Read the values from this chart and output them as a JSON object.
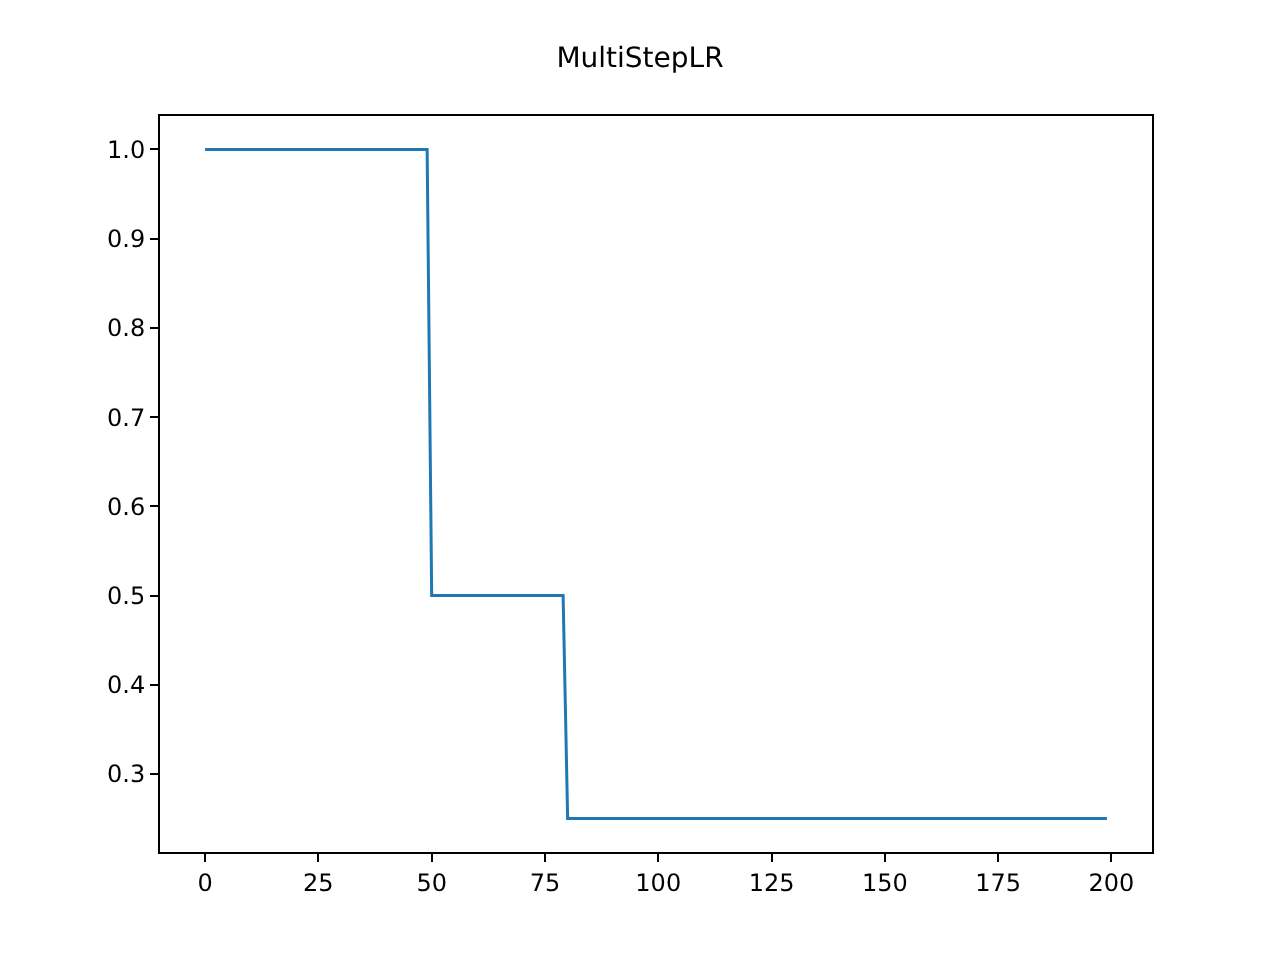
{
  "chart_data": {
    "type": "line",
    "title": "MultiStepLR",
    "series": [
      {
        "color": "#1f77b4",
        "x": [
          0,
          49,
          50,
          79,
          80,
          199
        ],
        "values": [
          1.0,
          1.0,
          0.5,
          0.5,
          0.25,
          0.25
        ]
      }
    ],
    "xlim": [
      -9.95,
      208.95
    ],
    "xticks": [
      0,
      25,
      50,
      75,
      100,
      125,
      150,
      175,
      200
    ],
    "ylim": [
      0.2125,
      1.0375
    ],
    "yticks": [
      0.3,
      0.4,
      0.5,
      0.6,
      0.7,
      0.8,
      0.9,
      {
        "value": 1,
        "label": "1.0"
      }
    ],
    "marker": "none",
    "line_style": "solid"
  }
}
